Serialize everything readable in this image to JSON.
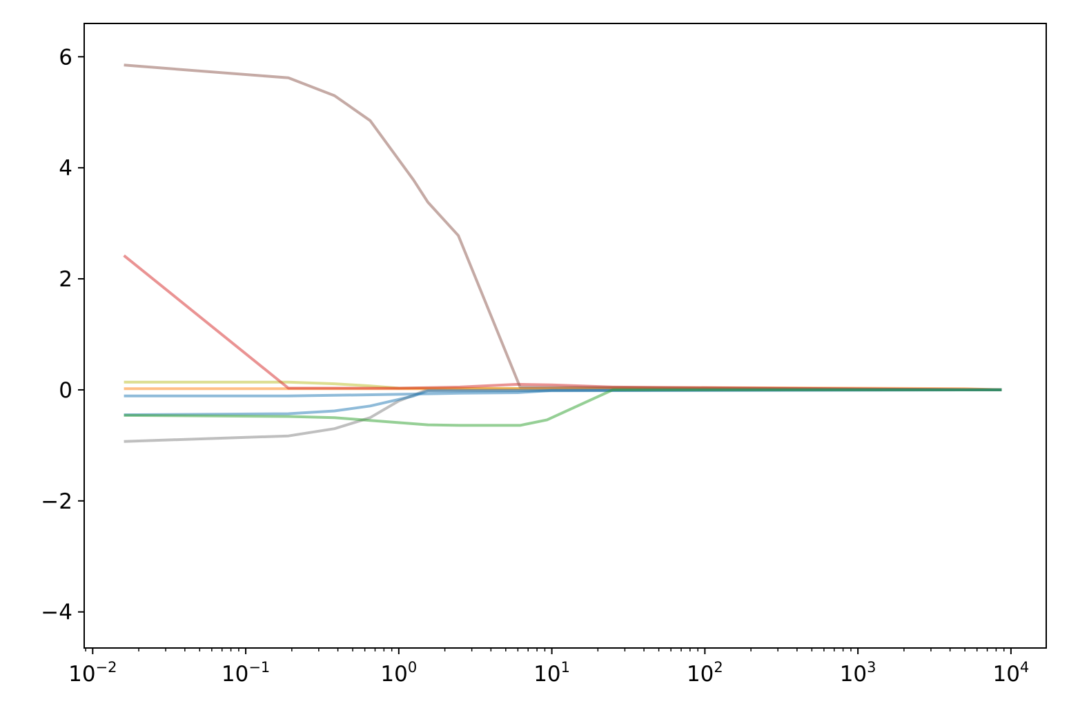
{
  "chart_data": {
    "type": "line",
    "title": "",
    "xlabel": "",
    "ylabel": "",
    "xscale": "log",
    "xlim": [
      0.0088,
      17000
    ],
    "ylim": [
      -4.65,
      6.6
    ],
    "grid": false,
    "legend": "none",
    "x_ticks": [
      {
        "value": 0.01,
        "base": "10",
        "exp": "−2"
      },
      {
        "value": 0.1,
        "base": "10",
        "exp": "−1"
      },
      {
        "value": 1,
        "base": "10",
        "exp": "0"
      },
      {
        "value": 10,
        "base": "10",
        "exp": "1"
      },
      {
        "value": 100,
        "base": "10",
        "exp": "2"
      },
      {
        "value": 1000,
        "base": "10",
        "exp": "3"
      },
      {
        "value": 10000,
        "base": "10",
        "exp": "4"
      }
    ],
    "y_ticks": [
      {
        "value": -4,
        "label": "−4"
      },
      {
        "value": -2,
        "label": "−2"
      },
      {
        "value": 0,
        "label": "0"
      },
      {
        "value": 2,
        "label": "2"
      },
      {
        "value": 4,
        "label": "4"
      },
      {
        "value": 6,
        "label": "6"
      }
    ],
    "series": [
      {
        "color": "#bcbd22",
        "points": [
          [
            0.016,
            0.14
          ],
          [
            0.19,
            0.14
          ],
          [
            0.38,
            0.11
          ],
          [
            0.65,
            0.07
          ],
          [
            1.0,
            0.03
          ],
          [
            8700,
            0.0
          ]
        ]
      },
      {
        "color": "#ff7f0e",
        "points": [
          [
            0.016,
            0.02
          ],
          [
            6.0,
            0.02
          ],
          [
            25,
            0.04
          ],
          [
            100,
            0.04
          ],
          [
            1000,
            0.03
          ],
          [
            5000,
            0.02
          ],
          [
            8700,
            0.0
          ]
        ]
      },
      {
        "color": "#d62728",
        "points": [
          [
            0.016,
            2.42
          ],
          [
            0.19,
            0.03
          ],
          [
            1.0,
            0.03
          ],
          [
            2.5,
            0.05
          ],
          [
            6.0,
            0.1
          ],
          [
            10,
            0.09
          ],
          [
            25,
            0.05
          ],
          [
            8700,
            0.0
          ]
        ]
      },
      {
        "color": "#8c564b",
        "points": [
          [
            0.016,
            5.85
          ],
          [
            0.19,
            5.62
          ],
          [
            0.38,
            5.3
          ],
          [
            0.65,
            4.85
          ],
          [
            1.25,
            3.78
          ],
          [
            1.55,
            3.38
          ],
          [
            2.45,
            2.78
          ],
          [
            6.2,
            0.05
          ],
          [
            8700,
            0.0
          ]
        ]
      },
      {
        "color": "#7f7f7f",
        "points": [
          [
            0.016,
            -0.93
          ],
          [
            0.19,
            -0.83
          ],
          [
            0.38,
            -0.7
          ],
          [
            0.65,
            -0.5
          ],
          [
            1.0,
            -0.2
          ],
          [
            1.5,
            -0.01
          ],
          [
            8700,
            0.0
          ]
        ]
      },
      {
        "color": "#1f77b4",
        "points": [
          [
            0.016,
            -0.45
          ],
          [
            0.19,
            -0.43
          ],
          [
            0.38,
            -0.38
          ],
          [
            0.65,
            -0.29
          ],
          [
            1.25,
            -0.11
          ],
          [
            1.55,
            -0.02
          ],
          [
            8700,
            0.0
          ]
        ]
      },
      {
        "color": "#1f77b4",
        "points": [
          [
            0.016,
            -0.11
          ],
          [
            0.19,
            -0.11
          ],
          [
            1.0,
            -0.08
          ],
          [
            2.5,
            -0.06
          ],
          [
            6.0,
            -0.05
          ],
          [
            10,
            -0.01
          ],
          [
            8700,
            0.0
          ]
        ]
      },
      {
        "color": "#2ca02c",
        "points": [
          [
            0.016,
            -0.46
          ],
          [
            0.19,
            -0.48
          ],
          [
            0.38,
            -0.5
          ],
          [
            0.65,
            -0.55
          ],
          [
            1.55,
            -0.63
          ],
          [
            2.5,
            -0.64
          ],
          [
            6.2,
            -0.64
          ],
          [
            9.3,
            -0.54
          ],
          [
            25,
            0.0
          ],
          [
            8700,
            0.0
          ]
        ]
      }
    ]
  }
}
